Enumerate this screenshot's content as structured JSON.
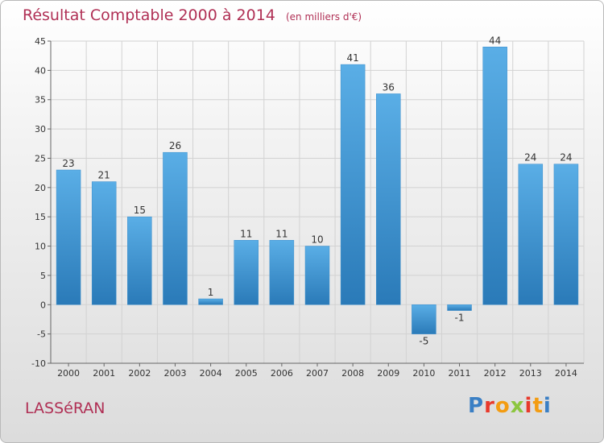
{
  "header": {
    "title": "Résultat Comptable 2000 à 2014",
    "subtitle": "(en milliers d'€)"
  },
  "footer": {
    "town": "LASSéRAN",
    "logo_letters": [
      "P",
      "r",
      "o",
      "x",
      "i",
      "t",
      "i"
    ],
    "logo_colors": [
      "#3a7fc4",
      "#e8392b",
      "#f39c12",
      "#8cc63f",
      "#e8392b",
      "#f39c12",
      "#3a7fc4"
    ]
  },
  "colors": {
    "bar_top": "#5aaee6",
    "bar_bottom": "#2a7ab8",
    "accent": "#b03055"
  },
  "chart_data": {
    "type": "bar",
    "title": "Résultat Comptable 2000 à 2014",
    "subtitle": "(en milliers d'€)",
    "categories": [
      "2000",
      "2001",
      "2002",
      "2003",
      "2004",
      "2005",
      "2006",
      "2007",
      "2008",
      "2009",
      "2010",
      "2011",
      "2012",
      "2013",
      "2014"
    ],
    "values": [
      23,
      21,
      15,
      26,
      1,
      11,
      11,
      10,
      41,
      36,
      -5,
      -1,
      44,
      24,
      24
    ],
    "value_labels": [
      "23",
      "21",
      "15",
      "26",
      "1",
      "11",
      "11",
      "10",
      "41",
      "36",
      "-5",
      "-1",
      "44",
      "24",
      "24"
    ],
    "y_ticks": [
      -10,
      -5,
      0,
      5,
      10,
      15,
      20,
      25,
      30,
      35,
      40,
      45
    ],
    "y_tick_labels": [
      "-10",
      "-5",
      "0",
      "5",
      "10",
      "15",
      "20",
      "25",
      "30",
      "35",
      "40",
      "45"
    ],
    "ylim": [
      -10,
      45
    ],
    "grid": true,
    "xlabel": "",
    "ylabel": ""
  }
}
